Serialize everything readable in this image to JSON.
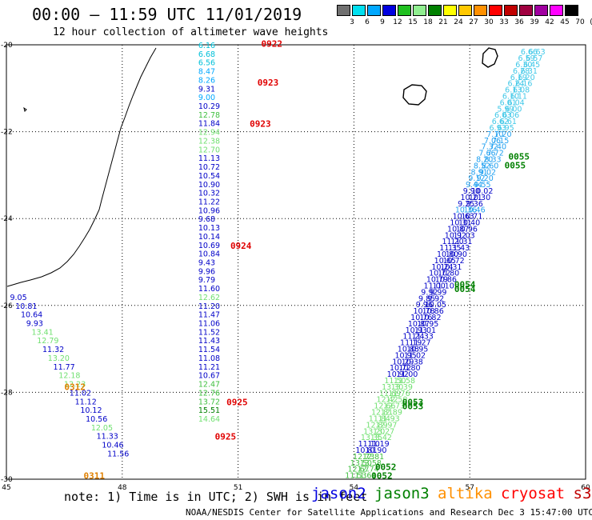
{
  "header": {
    "title": "00:00 – 11:59 UTC 11/01/2019",
    "subtitle": "12 hour collection of altimeter wave heights"
  },
  "legend": {
    "labels": [
      "3",
      "6",
      "9",
      "12",
      "15",
      "18",
      "21",
      "24",
      "27",
      "30",
      "33",
      "36",
      "39",
      "42",
      "45",
      "70",
      "(ft)"
    ],
    "colors": [
      "#707070",
      "#00e0f0",
      "#00a8ff",
      "#0000e0",
      "#20c020",
      "#90ee90",
      "#008000",
      "#ffff00",
      "#ffc800",
      "#ff9000",
      "#ff0000",
      "#c00000",
      "#a00040",
      "#a000a0",
      "#ff00ff",
      "#000000"
    ]
  },
  "footer": {
    "note": "note: 1) Time is in UTC; 2) SWH is in feet",
    "credit": "NOAA/NESDIS Center for Satellite Applications and Research   Dec  3 15:47:00 UTC 2019",
    "satellites": [
      {
        "name": "jason2",
        "color": "#0000e0"
      },
      {
        "name": "jason3",
        "color": "#008000"
      },
      {
        "name": "altika",
        "color": "#ff9000"
      },
      {
        "name": "cryosat",
        "color": "#ff0000"
      },
      {
        "name": "s3a",
        "color": "#c00000"
      }
    ]
  },
  "chart_data": {
    "type": "scatter",
    "title": "12 hour collection of altimeter wave heights",
    "xlabel": "",
    "ylabel": "",
    "xlim": [
      45,
      60
    ],
    "ylim": [
      -30,
      -20
    ],
    "xticks": [
      "45",
      "48",
      "51",
      "54",
      "57",
      "60"
    ],
    "yticks": [
      "-20",
      "-22",
      "-24",
      "-26",
      "-28",
      "-30"
    ],
    "grid": true,
    "track1": {
      "lon": 50.55,
      "lat_start": -20.0,
      "lat_step": -0.2,
      "values": [
        "6.16",
        "6.68",
        "6.56",
        "8.47",
        "8.26",
        "9.31",
        "9.00",
        "10.29",
        "12.78",
        "11.84",
        "12.94",
        "12.38",
        "12.70",
        "11.13",
        "10.72",
        "10.54",
        "10.90",
        "10.32",
        "11.22",
        "10.96",
        "9.68",
        "10.13",
        "10.14",
        "10.69",
        "10.84",
        "9.43",
        "9.96",
        "9.79",
        "11.60",
        "12.62",
        "11.20",
        "11.47",
        "11.06",
        "11.52",
        "11.43",
        "11.54",
        "11.08",
        "11.21",
        "10.67",
        "12.47",
        "12.76",
        "13.72",
        "15.51",
        "14.64"
      ],
      "colors": [
        "#00c0d8",
        "#00c0d8",
        "#00c0d8",
        "#00a8ff",
        "#00a8ff",
        "#0000c8",
        "#00a8ff",
        "#0000c8",
        "#40c040",
        "#0000c8",
        "#70e070",
        "#70e070",
        "#70e070",
        "#0000c8",
        "#0000c8",
        "#0000c8",
        "#0000c8",
        "#0000c8",
        "#0000c8",
        "#0000c8",
        "#0000c8",
        "#0000c8",
        "#0000c8",
        "#0000c8",
        "#0000c8",
        "#0000c8",
        "#0000c8",
        "#0000c8",
        "#0000c8",
        "#70e070",
        "#0000c8",
        "#0000c8",
        "#0000c8",
        "#0000c8",
        "#0000c8",
        "#0000c8",
        "#0000c8",
        "#0000c8",
        "#0000c8",
        "#40c040",
        "#40c040",
        "#40c040",
        "#008000",
        "#70e070"
      ]
    },
    "track2": {
      "lon_start": 45.3,
      "lon_step": 0.14,
      "lat_start": -25.8,
      "lat_step": -0.2,
      "values": [
        "9.05",
        "10.81",
        "10.64",
        "9.93",
        "13.41",
        "12.79",
        "11.32",
        "13.20",
        "11.77",
        "12.18",
        "12.23",
        "11.02",
        "11.12",
        "10.12",
        "10.56",
        "12.05",
        "11.33",
        "10.46",
        "11.56"
      ],
      "colors": [
        "#0000c8",
        "#0000c8",
        "#0000c8",
        "#0000c8",
        "#70e070",
        "#70e070",
        "#0000c8",
        "#70e070",
        "#0000c8",
        "#70e070",
        "#70e070",
        "#0000c8",
        "#0000c8",
        "#0000c8",
        "#0000c8",
        "#70e070",
        "#0000c8",
        "#0000c8",
        "#0000c8"
      ]
    },
    "track3": {
      "values": [
        "6.66",
        "6.59",
        "6.30",
        "6.28",
        "6.19",
        "6.24",
        "6.13",
        "6.10",
        "6.01",
        "5.99",
        "6.03",
        "6.62",
        "6.93",
        "7.10",
        "7.06",
        "7.32",
        "7.66",
        "8.20",
        "8.52",
        "8.91",
        "9.12",
        "9.44",
        "9.90",
        "10.21",
        "9.25",
        "10.36",
        "10.63",
        "10.31",
        "10.87",
        "10.92",
        "11.20",
        "11.35",
        "10.80",
        "10.65",
        "10.24",
        "10.72",
        "10.79",
        "11.00",
        "9.92",
        "9.85",
        "9.96",
        "10.78",
        "10.76",
        "10.87",
        "10.93",
        "11.24",
        "11.19",
        "10.88",
        "10.95",
        "10.29",
        "10.72",
        "10.92",
        "11.50",
        "13.30",
        "11.69",
        "12.42",
        "12.66",
        "12.81",
        "11.84",
        "12.89",
        "13.20",
        "13.35",
        "11.10",
        "10.81",
        "12.73",
        "13.50",
        "12.67",
        "11.53"
      ]
    },
    "track4": {
      "values": [
        "6.63",
        "6.57",
        "6.45",
        "6.31",
        "6.20",
        "6.16",
        "6.08",
        "6.11",
        "6.04",
        "6.00",
        "6.06",
        "6.61",
        "6.95",
        "7.20",
        "7.15",
        "7.40",
        "7.72",
        "8.33",
        "8.60",
        "9.02",
        "9.20",
        "9.55",
        "10.02",
        "10.30",
        "9.36",
        "10.46",
        "10.71",
        "10.40",
        "10.96",
        "11.03",
        "11.31",
        "11.43",
        "10.90",
        "10.72",
        "10.31",
        "10.80",
        "10.86",
        "11.10",
        "9.99",
        "9.92",
        "10.05",
        "10.86",
        "10.82",
        "10.95",
        "11.01",
        "11.33",
        "11.27",
        "10.95",
        "11.02",
        "10.38",
        "10.80",
        "11.00",
        "11.58",
        "13.39",
        "11.76",
        "12.50",
        "12.73",
        "12.89",
        "11.93",
        "12.97",
        "13.27",
        "13.42",
        "11.19",
        "10.90",
        "12.81",
        "13.58",
        "12.74",
        "11.61"
      ]
    },
    "time_labels": [
      {
        "text": "0922",
        "lon": 51.6,
        "lat": -19.95,
        "color": "#e00000"
      },
      {
        "text": "0923",
        "lon": 51.5,
        "lat": -20.85,
        "color": "#e00000"
      },
      {
        "text": "0923",
        "lon": 51.3,
        "lat": -21.8,
        "color": "#e00000"
      },
      {
        "text": "0924",
        "lon": 50.8,
        "lat": -24.6,
        "color": "#e00000"
      },
      {
        "text": "0925",
        "lon": 50.7,
        "lat": -28.2,
        "color": "#e00000"
      },
      {
        "text": "0925",
        "lon": 50.4,
        "lat": -29.0,
        "color": "#e00000"
      },
      {
        "text": "0312",
        "lon": 46.5,
        "lat": -27.85,
        "color": "#e08000"
      },
      {
        "text": "0311",
        "lon": 47.0,
        "lat": -29.9,
        "color": "#e08000"
      },
      {
        "text": "0055",
        "lon": 58.0,
        "lat": -22.55,
        "color": "#008000"
      },
      {
        "text": "0055",
        "lon": 57.9,
        "lat": -22.75,
        "color": "#008000"
      },
      {
        "text": "0054",
        "lon": 56.6,
        "lat": -25.5,
        "color": "#008000"
      },
      {
        "text": "0054",
        "lon": 56.6,
        "lat": -25.6,
        "color": "#008000"
      },
      {
        "text": "0053",
        "lon": 55.25,
        "lat": -28.2,
        "color": "#008000"
      },
      {
        "text": "0053",
        "lon": 55.25,
        "lat": -28.3,
        "color": "#008000"
      },
      {
        "text": "0052",
        "lon": 54.55,
        "lat": -29.7,
        "color": "#008000"
      },
      {
        "text": "0052",
        "lon": 54.45,
        "lat": -29.9,
        "color": "#008000"
      }
    ]
  }
}
